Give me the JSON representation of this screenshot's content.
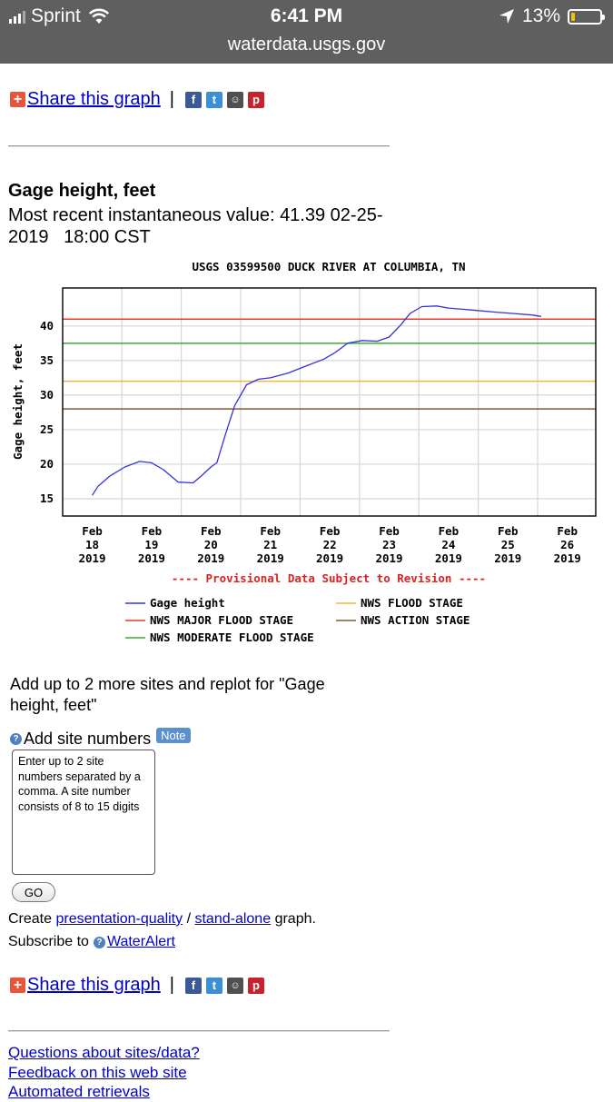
{
  "status_bar": {
    "carrier": "Sprint",
    "time": "6:41 PM",
    "battery": "13%",
    "battery_level": 0.13,
    "url": "waterdata.usgs.gov",
    "icons": [
      "signal-icon",
      "wifi-icon",
      "location-arrow-icon",
      "battery-icon"
    ]
  },
  "share": {
    "label": "Share this graph",
    "separator": "|",
    "icons": [
      "plus-icon",
      "facebook-icon",
      "twitter-icon",
      "reddit-icon",
      "pinterest-icon"
    ]
  },
  "gage": {
    "title": "Gage height, feet",
    "recent_value": "Most recent instantaneous value: 41.39 02-25-2019   18:00 CST"
  },
  "chart_data": {
    "type": "line",
    "title": "USGS 03599500 DUCK RIVER AT COLUMBIA, TN",
    "ylabel": "Gage height, feet",
    "xlabel": "",
    "ylim": [
      12.5,
      45.5
    ],
    "yticks": [
      15,
      20,
      25,
      30,
      35,
      40
    ],
    "xlim": [
      0,
      9
    ],
    "x_ticks": [
      {
        "x": 0,
        "label": [
          "Feb",
          "18",
          "2019"
        ]
      },
      {
        "x": 1,
        "label": [
          "Feb",
          "19",
          "2019"
        ]
      },
      {
        "x": 2,
        "label": [
          "Feb",
          "20",
          "2019"
        ]
      },
      {
        "x": 3,
        "label": [
          "Feb",
          "21",
          "2019"
        ]
      },
      {
        "x": 4,
        "label": [
          "Feb",
          "22",
          "2019"
        ]
      },
      {
        "x": 5,
        "label": [
          "Feb",
          "23",
          "2019"
        ]
      },
      {
        "x": 6,
        "label": [
          "Feb",
          "24",
          "2019"
        ]
      },
      {
        "x": 7,
        "label": [
          "Feb",
          "25",
          "2019"
        ]
      },
      {
        "x": 8,
        "label": [
          "Feb",
          "26",
          "2019"
        ]
      }
    ],
    "grid": true,
    "series": [
      {
        "name": "Gage height",
        "color": "#3333dd",
        "x": [
          0,
          0.1,
          0.3,
          0.55,
          0.8,
          1.0,
          1.2,
          1.45,
          1.7,
          1.85,
          2.0,
          2.1,
          2.25,
          2.4,
          2.6,
          2.8,
          3.0,
          3.3,
          3.6,
          3.9,
          4.1,
          4.3,
          4.55,
          4.8,
          5.0,
          5.2,
          5.35,
          5.55,
          5.8,
          6.0,
          6.4,
          6.8,
          7.1,
          7.4,
          7.56
        ],
        "y": [
          15.5,
          16.8,
          18.3,
          19.6,
          20.4,
          20.2,
          19.2,
          17.4,
          17.3,
          18.4,
          19.6,
          20.2,
          24.5,
          28.5,
          31.5,
          32.3,
          32.5,
          33.2,
          34.2,
          35.2,
          36.2,
          37.5,
          37.9,
          37.8,
          38.4,
          40.2,
          41.8,
          42.8,
          42.9,
          42.6,
          42.3,
          42.0,
          41.8,
          41.6,
          41.39
        ]
      }
    ],
    "thresholds": [
      {
        "name": "NWS MAJOR FLOOD STAGE",
        "value": 41.0,
        "color": "#e53b2c"
      },
      {
        "name": "NWS MODERATE FLOOD STAGE",
        "value": 37.5,
        "color": "#3aaa35"
      },
      {
        "name": "NWS FLOOD STAGE",
        "value": 32.0,
        "color": "#f0b63c"
      },
      {
        "name": "NWS ACTION STAGE",
        "value": 28.0,
        "color": "#7d5a38"
      }
    ],
    "annotation": "---- Provisional Data Subject to Revision ----",
    "annotation_color": "#dd2222",
    "legend_placement": "bottom",
    "legend": [
      {
        "label": "Gage height",
        "color": "#3333dd"
      },
      {
        "label": "NWS FLOOD STAGE",
        "color": "#f0b63c"
      },
      {
        "label": "NWS MAJOR FLOOD STAGE",
        "color": "#e53b2c"
      },
      {
        "label": "NWS ACTION STAGE",
        "color": "#7d5a38"
      },
      {
        "label": "NWS MODERATE FLOOD STAGE",
        "color": "#3aaa35"
      }
    ]
  },
  "form": {
    "add_sites_text": "Add up to 2 more sites and replot for \"Gage height, feet\"",
    "add_site_label": "Add site numbers",
    "note_badge": "Note",
    "textarea_placeholder": "Enter up to 2 site numbers separated by a comma. A site number consists of 8 to 15 digits",
    "go_label": "GO"
  },
  "create": {
    "prefix": "Create",
    "presentation_link": "presentation-quality",
    "slash": "/",
    "standalone_link": "stand-alone",
    "suffix": "graph."
  },
  "subscribe": {
    "prefix": "Subscribe to",
    "link": "WaterAlert"
  },
  "footer": {
    "links": [
      "Questions about sites/data?",
      "Feedback on this web site",
      "Automated retrievals"
    ]
  }
}
